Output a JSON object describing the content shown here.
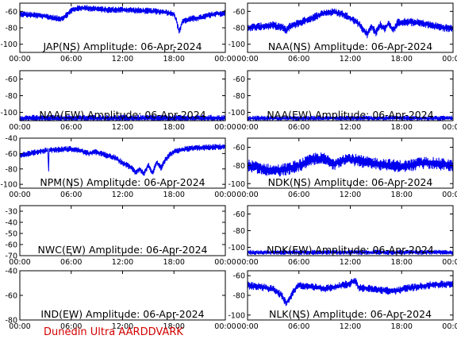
{
  "footer": "Dunedin Ultra AARDDVARK",
  "colors": {
    "trace": "#0000ee",
    "axis": "#000000",
    "footer": "#d40000"
  },
  "chart_data": [
    {
      "type": "line",
      "title": "JAP(NS) Amplitude: 06-Apr-2024",
      "xticks": [
        "00:00",
        "06:00",
        "12:00",
        "18:00",
        "00:00"
      ],
      "yticks": [
        "-60",
        "-80",
        "-100"
      ],
      "ylim": [
        -110,
        -50
      ],
      "xlim": [
        0,
        24
      ],
      "series": [
        {
          "x": [
            0,
            1,
            2,
            3,
            4,
            4.5,
            5,
            5.5,
            6,
            6.5,
            7,
            8,
            9,
            10,
            12,
            14,
            16,
            17,
            18,
            18.3,
            18.6,
            19,
            20,
            21,
            22,
            23,
            24
          ],
          "y": [
            -63,
            -64,
            -65,
            -66,
            -68,
            -69,
            -68,
            -64,
            -59,
            -57,
            -56,
            -56,
            -57,
            -58,
            -58,
            -59,
            -60,
            -61,
            -63,
            -72,
            -85,
            -72,
            -69,
            -68,
            -65,
            -63,
            -62
          ],
          "spread": 4
        }
      ]
    },
    {
      "type": "line",
      "title": "NAA(NS) Amplitude: 06-Apr-2024",
      "xticks": [
        "00:00",
        "06:00",
        "12:00",
        "18:00",
        "00:00"
      ],
      "yticks": [
        "-60",
        "-80",
        "-100"
      ],
      "ylim": [
        -110,
        -50
      ],
      "xlim": [
        0,
        24
      ],
      "series": [
        {
          "x": [
            0,
            1,
            2,
            3,
            4,
            4.5,
            5,
            6,
            7,
            8,
            9,
            10,
            11,
            12,
            13,
            13.5,
            14,
            14.5,
            15,
            15.5,
            16,
            16.5,
            17,
            17.5,
            18,
            19,
            20,
            21,
            22,
            23,
            24
          ],
          "y": [
            -80,
            -79,
            -78,
            -77,
            -79,
            -83,
            -78,
            -74,
            -70,
            -66,
            -62,
            -61,
            -63,
            -68,
            -75,
            -82,
            -88,
            -78,
            -86,
            -76,
            -82,
            -74,
            -84,
            -74,
            -73,
            -73,
            -74,
            -76,
            -78,
            -80,
            -81
          ],
          "spread": 5
        }
      ]
    },
    {
      "type": "line",
      "title": "NAA(EW) Amplitude: 06-Apr-2024",
      "xticks": [
        "00:00",
        "06:00",
        "12:00",
        "18:00",
        "00:00"
      ],
      "yticks": [
        "-60",
        "-80",
        "-100"
      ],
      "ylim": [
        -110,
        -50
      ],
      "xlim": [
        0,
        24
      ],
      "series": [
        {
          "x": [
            0,
            6,
            12,
            18,
            24
          ],
          "y": [
            -107,
            -107,
            -107,
            -107,
            -107
          ],
          "spread": 4
        }
      ]
    },
    {
      "type": "line",
      "title": "NAA(EW) Amplitude: 06-Apr-2024",
      "xticks": [
        "00:00",
        "06:00",
        "12:00",
        "18:00",
        "00:00"
      ],
      "yticks": [
        "-60",
        "-80",
        "-100"
      ],
      "ylim": [
        -110,
        -50
      ],
      "xlim": [
        0,
        24
      ],
      "series": [
        {
          "x": [
            0,
            6,
            12,
            18,
            24
          ],
          "y": [
            -107,
            -107,
            -107,
            -107,
            -107
          ],
          "spread": 3
        }
      ]
    },
    {
      "type": "line",
      "title": "NPM(NS) Amplitude: 06-Apr-2024",
      "xticks": [
        "00:00",
        "06:00",
        "12:00",
        "18:00",
        "00:00"
      ],
      "yticks": [
        "-40",
        "-60",
        "-80",
        "-100"
      ],
      "ylim": [
        -105,
        -40
      ],
      "xlim": [
        0,
        24
      ],
      "series": [
        {
          "x": [
            0,
            2,
            3,
            3.3,
            3.35,
            3.4,
            4,
            6,
            7,
            8,
            9,
            10,
            11,
            12,
            13,
            13.5,
            14,
            14.5,
            15,
            15.5,
            16,
            16.5,
            17,
            17.5,
            18,
            19,
            20,
            22,
            24
          ],
          "y": [
            -62,
            -58,
            -56,
            -56,
            -95,
            -56,
            -55,
            -54,
            -56,
            -60,
            -58,
            -62,
            -65,
            -72,
            -78,
            -84,
            -80,
            -86,
            -75,
            -85,
            -72,
            -79,
            -68,
            -62,
            -58,
            -55,
            -53,
            -52,
            -51
          ],
          "spread": 4
        }
      ]
    },
    {
      "type": "line",
      "title": "NDK(NS) Amplitude: 06-Apr-2024",
      "xticks": [
        "00:00",
        "06:00",
        "12:00",
        "18:00",
        "00:00"
      ],
      "yticks": [
        "-60",
        "-80",
        "-100"
      ],
      "ylim": [
        -105,
        -50
      ],
      "xlim": [
        0,
        24
      ],
      "series": [
        {
          "x": [
            0,
            1,
            2,
            3,
            4,
            5,
            6,
            7,
            8,
            9,
            10,
            11,
            12,
            13,
            14,
            15,
            16,
            17,
            18,
            19,
            20,
            21,
            22,
            23,
            24
          ],
          "y": [
            -80,
            -82,
            -84,
            -86,
            -85,
            -83,
            -80,
            -76,
            -72,
            -73,
            -79,
            -74,
            -73,
            -75,
            -77,
            -78,
            -79,
            -80,
            -81,
            -80,
            -78,
            -77,
            -78,
            -79,
            -80
          ],
          "spread": 7
        }
      ]
    },
    {
      "type": "line",
      "title": "NWC(EW) Amplitude: 06-Apr-2024",
      "xticks": [
        "00:00",
        "06:00",
        "12:00",
        "18:00",
        "00:00"
      ],
      "yticks": [
        "-30",
        "-40",
        "-50",
        "-60",
        "-70"
      ],
      "ylim": [
        -70,
        -25
      ],
      "xlim": [
        0,
        24
      ],
      "series": []
    },
    {
      "type": "line",
      "title": "NDK(EW) Amplitude: 06-Apr-2024",
      "xticks": [
        "00:00",
        "06:00",
        "12:00",
        "18:00",
        "00:00"
      ],
      "yticks": [
        "-60",
        "-80",
        "-100"
      ],
      "ylim": [
        -110,
        -50
      ],
      "xlim": [
        0,
        24
      ],
      "series": [
        {
          "x": [
            0,
            6,
            12,
            18,
            24
          ],
          "y": [
            -106,
            -106,
            -106,
            -106,
            -106
          ],
          "spread": 3
        }
      ]
    },
    {
      "type": "line",
      "title": "IND(EW) Amplitude: 06-Apr-2024",
      "xticks": [
        "00:00",
        "06:00",
        "12:00",
        "18:00",
        "00:00"
      ],
      "yticks": [
        "-40",
        "-60",
        "-80"
      ],
      "ylim": [
        -80,
        -40
      ],
      "xlim": [
        0,
        24
      ],
      "series": []
    },
    {
      "type": "line",
      "title": "NLK(NS) Amplitude: 06-Apr-2024",
      "xticks": [
        "00:00",
        "06:00",
        "12:00",
        "18:00",
        "00:00"
      ],
      "yticks": [
        "-60",
        "-80",
        "-100"
      ],
      "ylim": [
        -105,
        -55
      ],
      "xlim": [
        0,
        24
      ],
      "series": [
        {
          "x": [
            0,
            1,
            2,
            3,
            4,
            4.5,
            5,
            5.5,
            6,
            7,
            8,
            9,
            10,
            11,
            12,
            12.5,
            13,
            14,
            15,
            16,
            17,
            18,
            19,
            19.2,
            19.4,
            20,
            21,
            22,
            23,
            24
          ],
          "y": [
            -70,
            -71,
            -72,
            -74,
            -80,
            -88,
            -82,
            -74,
            -70,
            -71,
            -72,
            -73,
            -72,
            -70,
            -68,
            -64,
            -72,
            -73,
            -74,
            -75,
            -76,
            -74,
            -72,
            -72,
            -72,
            -71,
            -70,
            -69,
            -69,
            -68
          ],
          "spread": 4
        }
      ]
    }
  ]
}
